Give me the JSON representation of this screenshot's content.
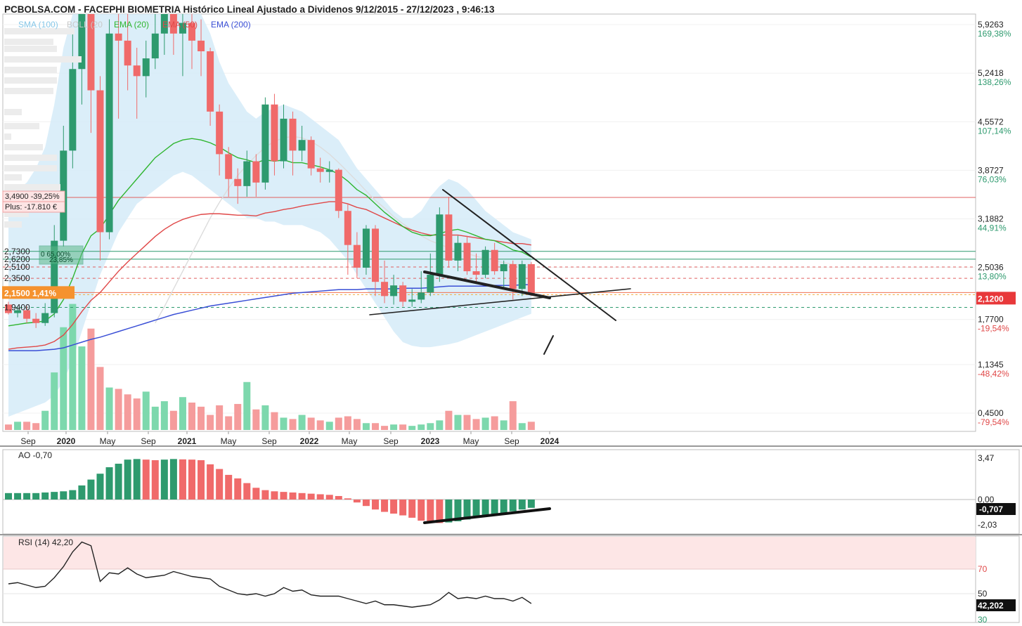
{
  "title": "PCBOLSA.COM - FACEPHI BIOMETRIA Histórico Lineal Ajustado a Dividenos 9/12/2015 - 27/12/2023 , 9:46:13",
  "colors": {
    "up": "#2e9a6e",
    "down": "#f06a6a",
    "sma": "#86c7e8",
    "boll": "#d5ebf8",
    "ema20": "#2fb52f",
    "ema50": "#e04848",
    "ema200": "#3a4fd6",
    "grid": "#f0f0f0"
  },
  "indicators": {
    "sma": "SMA (100)",
    "boll": "BOLL (20",
    "ema20": "EMA (20)",
    "ema50": "EMA (50)",
    "ema200": "EMA (200)"
  },
  "chart_data": [
    {
      "type": "candlestick",
      "title": "PCBOLSA.COM - FACEPHI BIOMETRIA Histórico Lineal Ajustado a Dividenos 9/12/2015 - 27/12/2023 , 9:46:13",
      "x_ticks": [
        "Sep",
        "2020",
        "May",
        "Sep",
        "2021",
        "May",
        "Sep",
        "2022",
        "May",
        "Sep",
        "2023",
        "May",
        "Sep",
        "2024"
      ],
      "y_axis": {
        "ticks": [
          {
            "value": 5.9263,
            "label": "5,9263",
            "pct": "169,38%"
          },
          {
            "value": 5.2418,
            "label": "5,2418",
            "pct": "138,26%"
          },
          {
            "value": 4.5572,
            "label": "4,5572",
            "pct": "107,14%"
          },
          {
            "value": 3.8727,
            "label": "3,8727",
            "pct": "76,03%"
          },
          {
            "value": 3.1882,
            "label": "3,1882",
            "pct": "44,91%"
          },
          {
            "value": 2.5036,
            "label": "2,5036",
            "pct": "13,80%"
          },
          {
            "value": 1.77,
            "label": "1,7700",
            "pct": "-19,54%"
          },
          {
            "value": 1.1345,
            "label": "1,1345",
            "pct": "-48,42%"
          },
          {
            "value": 0.45,
            "label": "0,4500",
            "pct": "-79,54%"
          }
        ],
        "last": {
          "value": 2.12,
          "label": "2,1200"
        }
      },
      "levels": [
        {
          "value": 3.49,
          "label": "3,4900  -39,25%"
        },
        {
          "value": 2.73,
          "label": "2,7300"
        },
        {
          "value": 2.62,
          "label": "2,6200"
        },
        {
          "value": 2.51,
          "label": "2,5100"
        },
        {
          "value": 2.35,
          "label": "2,3500"
        },
        {
          "value": 2.15,
          "label": "2,1500  1,41%"
        },
        {
          "value": 1.94,
          "label": "1,9400"
        }
      ],
      "plus_label": "Plus: -17.810 €",
      "box_label": "0 65,00%",
      "box_label2": "23,85%",
      "candles": [
        [
          1.98,
          1.86,
          2.02,
          1.84
        ],
        [
          1.86,
          1.9,
          1.94,
          1.8
        ],
        [
          1.9,
          1.78,
          1.96,
          1.72
        ],
        [
          1.78,
          1.72,
          1.86,
          1.65
        ],
        [
          1.72,
          1.86,
          2.0,
          1.68
        ],
        [
          1.86,
          2.88,
          3.1,
          1.8
        ],
        [
          2.88,
          4.15,
          4.5,
          2.8
        ],
        [
          4.15,
          5.3,
          5.8,
          3.9
        ],
        [
          5.3,
          6.4,
          6.8,
          4.8
        ],
        [
          6.4,
          5.0,
          6.6,
          4.4
        ],
        [
          5.0,
          3.0,
          5.2,
          2.6
        ],
        [
          3.0,
          5.8,
          6.0,
          2.9
        ],
        [
          5.8,
          5.7,
          6.3,
          4.6
        ],
        [
          5.7,
          5.35,
          6.1,
          5.0
        ],
        [
          5.35,
          5.2,
          5.6,
          4.6
        ],
        [
          5.2,
          5.45,
          5.7,
          4.9
        ],
        [
          5.45,
          5.8,
          6.1,
          5.3
        ],
        [
          5.8,
          6.3,
          6.7,
          5.5
        ],
        [
          6.3,
          5.8,
          6.6,
          5.5
        ],
        [
          5.8,
          5.95,
          6.3,
          5.2
        ],
        [
          5.95,
          5.7,
          6.2,
          5.3
        ],
        [
          5.7,
          5.55,
          6.0,
          5.2
        ],
        [
          5.55,
          4.7,
          5.6,
          4.5
        ],
        [
          4.7,
          4.1,
          4.8,
          3.8
        ],
        [
          4.1,
          3.75,
          4.2,
          3.5
        ],
        [
          3.75,
          3.65,
          3.9,
          3.4
        ],
        [
          3.65,
          4.0,
          4.15,
          3.5
        ],
        [
          4.0,
          3.7,
          4.1,
          3.5
        ],
        [
          3.7,
          4.8,
          4.9,
          3.6
        ],
        [
          4.8,
          4.0,
          4.95,
          3.8
        ],
        [
          4.0,
          4.6,
          4.8,
          3.9
        ],
        [
          4.6,
          4.15,
          4.7,
          3.8
        ],
        [
          4.15,
          4.3,
          4.5,
          4.0
        ],
        [
          4.3,
          3.9,
          4.35,
          3.8
        ],
        [
          3.9,
          3.85,
          4.05,
          3.7
        ],
        [
          3.85,
          3.88,
          4.0,
          3.7
        ],
        [
          3.88,
          3.3,
          3.9,
          3.2
        ],
        [
          3.3,
          2.82,
          3.4,
          2.4
        ],
        [
          2.82,
          2.5,
          3.0,
          2.35
        ],
        [
          2.5,
          3.05,
          3.1,
          2.4
        ],
        [
          3.05,
          2.3,
          3.1,
          2.1
        ],
        [
          2.3,
          2.1,
          2.6,
          2.0
        ],
        [
          2.1,
          2.25,
          2.4,
          1.98
        ],
        [
          2.25,
          2.02,
          2.3,
          1.95
        ],
        [
          2.02,
          2.05,
          2.2,
          1.95
        ],
        [
          2.05,
          2.15,
          2.45,
          2.0
        ],
        [
          2.15,
          2.4,
          2.7,
          2.1
        ],
        [
          2.4,
          3.25,
          3.35,
          2.3
        ],
        [
          3.25,
          2.6,
          3.5,
          2.5
        ],
        [
          2.6,
          2.85,
          2.95,
          2.45
        ],
        [
          2.85,
          2.45,
          2.95,
          2.4
        ],
        [
          2.45,
          2.4,
          2.7,
          2.3
        ],
        [
          2.4,
          2.75,
          2.8,
          2.35
        ],
        [
          2.75,
          2.45,
          2.85,
          2.4
        ],
        [
          2.45,
          2.55,
          2.6,
          2.2
        ],
        [
          2.55,
          2.2,
          2.6,
          2.05
        ],
        [
          2.2,
          2.55,
          2.6,
          2.1
        ],
        [
          2.55,
          2.13,
          2.58,
          2.1
        ]
      ],
      "volume": [
        4,
        6,
        6,
        5,
        14,
        42,
        75,
        92,
        61,
        74,
        46,
        31,
        30,
        26,
        23,
        28,
        17,
        21,
        14,
        24,
        20,
        17,
        11,
        18,
        10,
        19,
        35,
        15,
        18,
        13,
        9,
        8,
        11,
        9,
        7,
        6,
        9,
        10,
        8,
        5,
        5,
        3,
        4,
        4,
        3,
        4,
        5,
        7,
        14,
        11,
        11,
        8,
        9,
        10,
        7,
        21,
        5,
        6
      ],
      "ema20": [
        1.68,
        1.7,
        1.72,
        1.73,
        1.75,
        1.85,
        2.05,
        2.35,
        2.7,
        2.95,
        3.05,
        3.25,
        3.45,
        3.6,
        3.75,
        3.9,
        4.05,
        4.15,
        4.25,
        4.3,
        4.32,
        4.3,
        4.26,
        4.2,
        4.12,
        4.05,
        4.02,
        3.98,
        4.02,
        4.0,
        4.02,
        3.98,
        3.98,
        3.95,
        3.92,
        3.88,
        3.82,
        3.72,
        3.6,
        3.52,
        3.4,
        3.28,
        3.18,
        3.08,
        3.0,
        2.96,
        2.95,
        2.98,
        3.02,
        3.04,
        3.0,
        2.95,
        2.9,
        2.88,
        2.82,
        2.75,
        2.72,
        2.65
      ],
      "ema50": [
        1.35,
        1.37,
        1.38,
        1.39,
        1.41,
        1.46,
        1.55,
        1.7,
        1.88,
        2.04,
        2.15,
        2.3,
        2.45,
        2.58,
        2.7,
        2.82,
        2.94,
        3.04,
        3.12,
        3.18,
        3.22,
        3.25,
        3.26,
        3.26,
        3.25,
        3.24,
        3.24,
        3.23,
        3.27,
        3.29,
        3.32,
        3.34,
        3.37,
        3.39,
        3.41,
        3.43,
        3.43,
        3.4,
        3.35,
        3.32,
        3.26,
        3.2,
        3.14,
        3.08,
        3.03,
        2.99,
        2.96,
        2.96,
        2.96,
        2.96,
        2.94,
        2.92,
        2.9,
        2.88,
        2.86,
        2.84,
        2.84,
        2.82
      ],
      "ema200": [
        1.33,
        1.33,
        1.33,
        1.33,
        1.34,
        1.35,
        1.37,
        1.41,
        1.45,
        1.49,
        1.52,
        1.56,
        1.6,
        1.64,
        1.68,
        1.72,
        1.76,
        1.8,
        1.84,
        1.87,
        1.9,
        1.93,
        1.96,
        1.98,
        2.0,
        2.02,
        2.04,
        2.06,
        2.08,
        2.1,
        2.12,
        2.14,
        2.15,
        2.16,
        2.17,
        2.18,
        2.19,
        2.19,
        2.19,
        2.2,
        2.2,
        2.2,
        2.2,
        2.21,
        2.21,
        2.21,
        2.22,
        2.23,
        2.24,
        2.24,
        2.24,
        2.24,
        2.24,
        2.25,
        2.25,
        2.25,
        2.26,
        2.26
      ],
      "sma100": [
        null,
        null,
        null,
        null,
        null,
        null,
        null,
        null,
        null,
        null,
        null,
        null,
        null,
        null,
        null,
        null,
        1.72,
        1.95,
        2.2,
        2.45,
        2.7,
        2.95,
        3.2,
        3.42,
        3.62,
        3.8,
        3.95,
        4.08,
        4.2,
        4.28,
        4.33,
        4.35,
        4.33,
        4.28,
        4.2,
        4.1,
        3.98,
        3.85,
        3.72,
        3.58,
        3.45,
        3.34,
        3.22,
        3.12,
        3.03,
        2.95,
        2.88,
        2.83,
        2.78,
        2.74,
        2.7,
        2.66,
        2.63,
        2.6,
        2.57,
        2.55,
        2.53,
        2.5
      ],
      "boll_upper": [
        3.5,
        3.6,
        3.7,
        3.9,
        4.2,
        4.8,
        5.6,
        6.3,
        7.0,
        7.4,
        7.6,
        7.7,
        7.8,
        7.8,
        7.8,
        7.7,
        7.5,
        7.3,
        7.0,
        6.8,
        6.5,
        6.2,
        5.8,
        5.4,
        5.1,
        4.9,
        4.7,
        4.6,
        4.7,
        4.75,
        4.8,
        4.75,
        4.7,
        4.6,
        4.5,
        4.4,
        4.3,
        4.1,
        3.9,
        3.75,
        3.6,
        3.45,
        3.3,
        3.2,
        3.2,
        3.3,
        3.5,
        3.65,
        3.75,
        3.7,
        3.6,
        3.45,
        3.3,
        3.2,
        3.1,
        3.0,
        2.95,
        2.9
      ],
      "boll_lower": [
        0.4,
        0.45,
        0.5,
        0.55,
        0.6,
        0.7,
        0.9,
        1.2,
        1.6,
        2.0,
        2.4,
        2.7,
        3.0,
        3.2,
        3.4,
        3.5,
        3.6,
        3.7,
        3.8,
        3.85,
        3.8,
        3.7,
        3.6,
        3.5,
        3.4,
        3.3,
        3.2,
        3.2,
        3.15,
        3.15,
        3.1,
        3.1,
        3.1,
        3.05,
        3.0,
        2.9,
        2.75,
        2.6,
        2.4,
        2.2,
        2.0,
        1.8,
        1.6,
        1.45,
        1.4,
        1.38,
        1.38,
        1.4,
        1.42,
        1.45,
        1.5,
        1.55,
        1.6,
        1.65,
        1.7,
        1.75,
        1.8,
        1.85
      ]
    },
    {
      "type": "bar",
      "title": "AO  -0,70",
      "y_ticks": [
        "3,47",
        "0,00",
        "-2,03"
      ],
      "last_label": "-0,707",
      "values": [
        0.55,
        0.55,
        0.55,
        0.55,
        0.6,
        0.65,
        0.7,
        0.8,
        1.2,
        1.7,
        2.2,
        2.75,
        3.05,
        3.4,
        3.45,
        3.4,
        3.35,
        3.4,
        3.45,
        3.42,
        3.4,
        3.35,
        3.0,
        2.6,
        2.1,
        1.8,
        1.4,
        1.0,
        0.8,
        0.7,
        0.65,
        0.6,
        0.55,
        0.5,
        0.45,
        0.4,
        0.3,
        0.1,
        -0.25,
        -0.55,
        -0.85,
        -1.05,
        -1.2,
        -1.35,
        -1.55,
        -1.8,
        -1.95,
        -2.0,
        -1.95,
        -1.85,
        -1.7,
        -1.55,
        -1.4,
        -1.3,
        -1.15,
        -1.0,
        -0.85,
        -0.707
      ]
    },
    {
      "type": "line",
      "title": "RSI (14)  42,20",
      "y_ticks": [
        "70",
        "50",
        "30"
      ],
      "last_label": "42,202",
      "values": [
        58,
        59,
        57,
        55,
        56,
        63,
        72,
        84,
        92,
        89,
        60,
        67,
        66,
        71,
        66,
        63,
        64,
        65,
        68,
        66,
        64,
        63,
        62,
        56,
        53,
        50,
        49,
        50,
        48,
        50,
        55,
        52,
        53,
        49,
        48,
        48,
        48,
        46,
        44,
        42,
        44,
        41,
        41,
        40,
        39,
        40,
        41,
        45,
        51,
        46,
        47,
        46,
        48,
        46,
        46,
        44,
        47,
        42
      ]
    }
  ]
}
